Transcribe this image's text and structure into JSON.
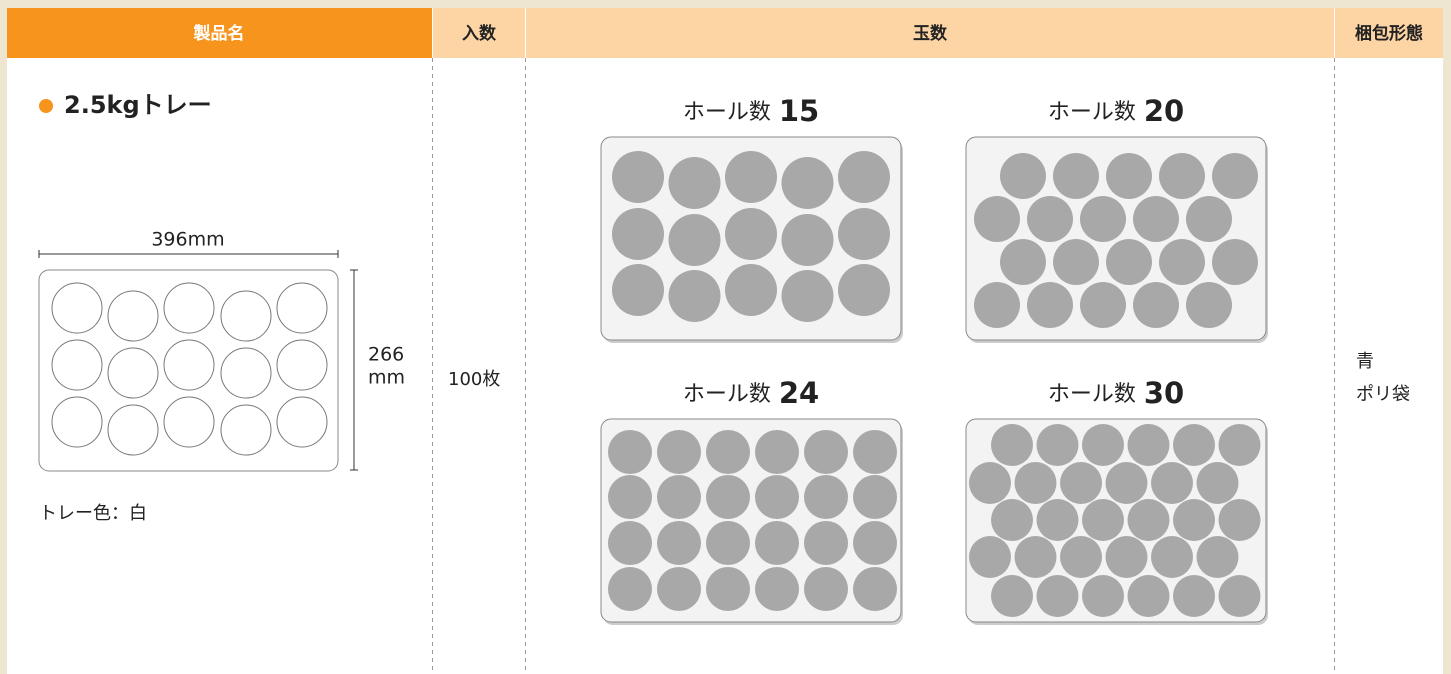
{
  "header": {
    "product": "製品名",
    "quantity": "入数",
    "balls": "玉数",
    "packing": "梱包形態"
  },
  "product": {
    "name": "2.5kgトレー",
    "width": "396mm",
    "height": "266",
    "height_unit": "mm",
    "tray_color": "トレー色：白"
  },
  "quantity": "100枚",
  "balls": {
    "label": "ホール数",
    "counts": [
      "15",
      "20",
      "24",
      "30"
    ]
  },
  "packing": {
    "line1": "青",
    "line2": "ポリ袋"
  }
}
